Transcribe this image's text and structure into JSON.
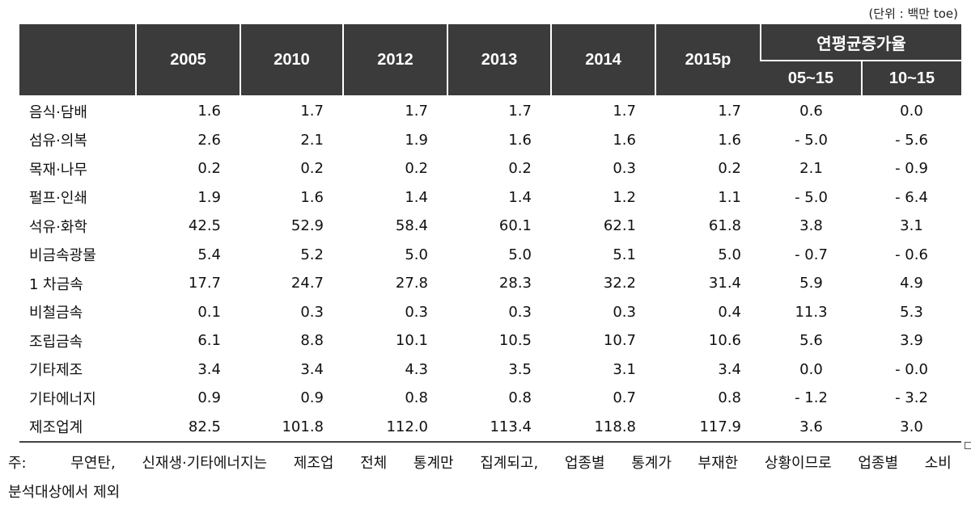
{
  "unit_label": "(단위 : 백만 toe)",
  "header": {
    "years": [
      "2005",
      "2010",
      "2012",
      "2013",
      "2014",
      "2015p"
    ],
    "growth_title": "연평균증가율",
    "growth_periods": [
      "05~15",
      "10~15"
    ]
  },
  "rows": [
    {
      "label": "음식·담배",
      "values": [
        "1.6",
        "1.7",
        "1.7",
        "1.7",
        "1.7",
        "1.7"
      ],
      "rates": [
        "0.6",
        "0.0"
      ]
    },
    {
      "label": "섬유·의복",
      "values": [
        "2.6",
        "2.1",
        "1.9",
        "1.6",
        "1.6",
        "1.6"
      ],
      "rates": [
        "- 5.0",
        "- 5.6"
      ]
    },
    {
      "label": "목재·나무",
      "values": [
        "0.2",
        "0.2",
        "0.2",
        "0.2",
        "0.3",
        "0.2"
      ],
      "rates": [
        "2.1",
        "- 0.9"
      ]
    },
    {
      "label": "펄프·인쇄",
      "values": [
        "1.9",
        "1.6",
        "1.4",
        "1.4",
        "1.2",
        "1.1"
      ],
      "rates": [
        "- 5.0",
        "- 6.4"
      ]
    },
    {
      "label": "석유·화학",
      "values": [
        "42.5",
        "52.9",
        "58.4",
        "60.1",
        "62.1",
        "61.8"
      ],
      "rates": [
        "3.8",
        "3.1"
      ]
    },
    {
      "label": "비금속광물",
      "values": [
        "5.4",
        "5.2",
        "5.0",
        "5.0",
        "5.1",
        "5.0"
      ],
      "rates": [
        "- 0.7",
        "- 0.6"
      ]
    },
    {
      "label": "1 차금속",
      "values": [
        "17.7",
        "24.7",
        "27.8",
        "28.3",
        "32.2",
        "31.4"
      ],
      "rates": [
        "5.9",
        "4.9"
      ]
    },
    {
      "label": "비철금속",
      "values": [
        "0.1",
        "0.3",
        "0.3",
        "0.3",
        "0.3",
        "0.4"
      ],
      "rates": [
        "11.3",
        "5.3"
      ]
    },
    {
      "label": "조립금속",
      "values": [
        "6.1",
        "8.8",
        "10.1",
        "10.5",
        "10.7",
        "10.6"
      ],
      "rates": [
        "5.6",
        "3.9"
      ]
    },
    {
      "label": "기타제조",
      "values": [
        "3.4",
        "3.4",
        "4.3",
        "3.5",
        "3.1",
        "3.4"
      ],
      "rates": [
        "0.0",
        "- 0.0"
      ]
    },
    {
      "label": "기타에너지",
      "values": [
        "0.9",
        "0.9",
        "0.8",
        "0.8",
        "0.7",
        "0.8"
      ],
      "rates": [
        "- 1.2",
        "- 3.2"
      ]
    },
    {
      "label": "제조업계",
      "values": [
        "82.5",
        "101.8",
        "112.0",
        "113.4",
        "118.8",
        "117.9"
      ],
      "rates": [
        "3.6",
        "3.0"
      ]
    }
  ],
  "note": {
    "prefix": "주:",
    "line1_words": [
      "무연탄,",
      "신재생·기타에너지는",
      "제조업",
      "전체",
      "통계만",
      "집계되고,",
      "업종별",
      "통계가",
      "부재한",
      "상황이므로",
      "업종별",
      "소비"
    ],
    "line2": "분석대상에서 제외"
  }
}
